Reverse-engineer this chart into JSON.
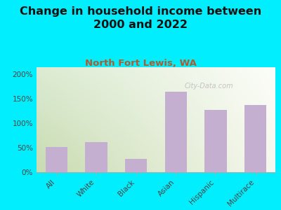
{
  "title": "Change in household income between\n2000 and 2022",
  "subtitle": "North Fort Lewis, WA",
  "categories": [
    "All",
    "White",
    "Black",
    "Asian",
    "Hispanic",
    "Multirace"
  ],
  "values": [
    52,
    62,
    27,
    165,
    128,
    137
  ],
  "bar_color": "#c4afd0",
  "background_outer": "#00eeff",
  "background_inner_left": "#c8dbb0",
  "background_inner_right": "#f5f8ee",
  "title_fontsize": 11.5,
  "subtitle_fontsize": 9.5,
  "subtitle_color": "#b05a30",
  "ylim": [
    0,
    215
  ],
  "yticks": [
    0,
    50,
    100,
    150,
    200
  ],
  "watermark": "City-Data.com"
}
